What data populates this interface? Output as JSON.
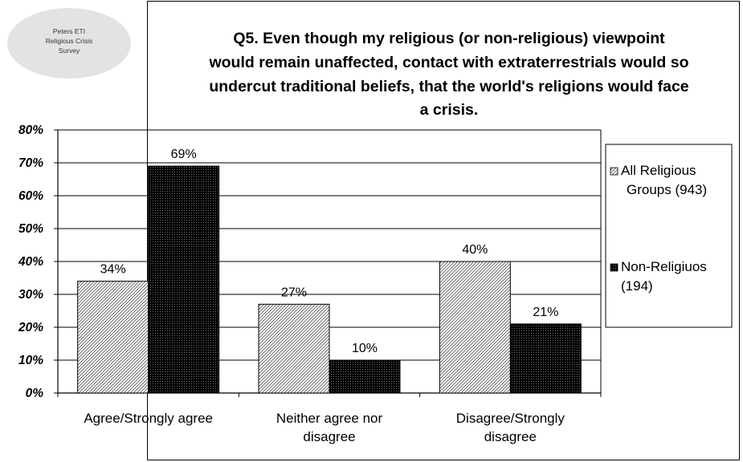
{
  "logo": {
    "lines": [
      "Peters ETI",
      "Religious Crisis",
      "Survey"
    ],
    "color": "#e3e3e3"
  },
  "chart_data": {
    "type": "bar",
    "title_lines": [
      "Q5. Even though my religious (or non-religious) viewpoint",
      "would remain unaffected, contact with extraterrestrials would so",
      "undercut traditional beliefs, that the world's religions would face",
      "a crisis."
    ],
    "categories": [
      [
        "Agree/Strongly agree"
      ],
      [
        "Neither agree nor",
        "disagree"
      ],
      [
        "Disagree/Strongly",
        "disagree"
      ]
    ],
    "series": [
      {
        "name": [
          "All Religious",
          "Groups (943)"
        ],
        "values": [
          34,
          27,
          40
        ],
        "labels": [
          "34%",
          "27%",
          "40%"
        ],
        "pattern": "hatch"
      },
      {
        "name": [
          "Non-Religiuos",
          "(194)"
        ],
        "values": [
          69,
          10,
          21
        ],
        "labels": [
          "69%",
          "10%",
          "21%"
        ],
        "pattern": "dark"
      }
    ],
    "ylim": [
      0,
      80
    ],
    "yticks": [
      "0%",
      "10%",
      "20%",
      "30%",
      "40%",
      "50%",
      "60%",
      "70%",
      "80%"
    ],
    "grid": true,
    "legend_position": "right"
  }
}
